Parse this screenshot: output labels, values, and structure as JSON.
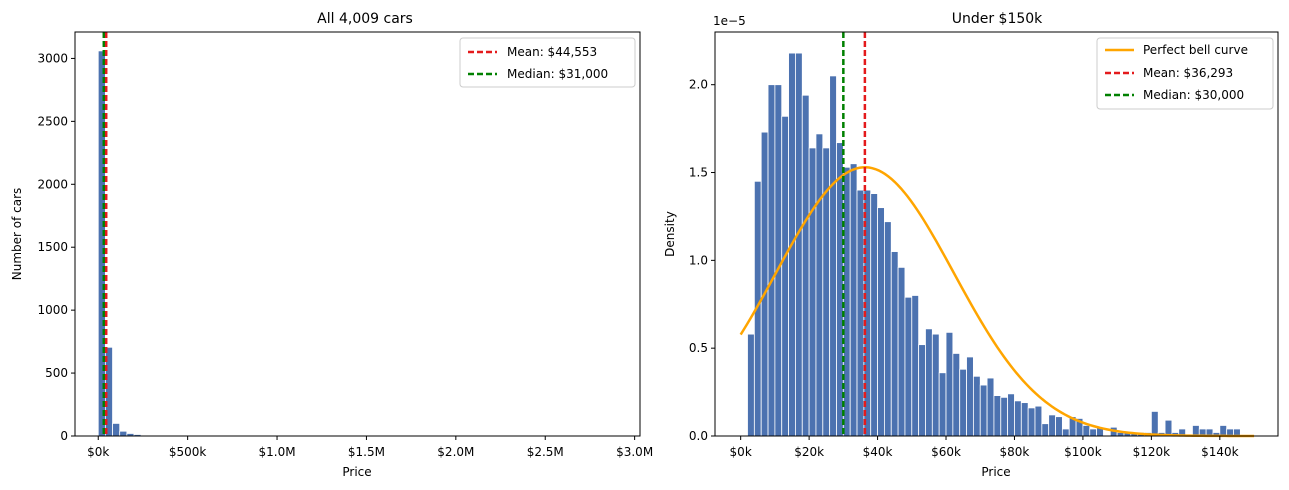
{
  "chart_data": [
    {
      "type": "bar",
      "title": "All 4,009 cars",
      "xlabel": "Price",
      "ylabel": "Number of cars",
      "xlim": [
        -130000,
        3030000
      ],
      "ylim": [
        0,
        3210
      ],
      "xticks": [
        0,
        500000,
        1000000,
        1500000,
        2000000,
        2500000,
        3000000
      ],
      "xticklabels": [
        "$0k",
        "$500k",
        "$1.0M",
        "$1.5M",
        "$2.0M",
        "$2.5M",
        "$3.0M"
      ],
      "yticks": [
        0,
        500,
        1000,
        1500,
        2000,
        2500,
        3000
      ],
      "yticklabels": [
        "0",
        "500",
        "1000",
        "1500",
        "2000",
        "2500",
        "3000"
      ],
      "bin_width": 40000,
      "bins_start": [
        0,
        40000,
        80000,
        120000,
        160000,
        200000,
        240000,
        280000
      ],
      "values": [
        3060,
        705,
        100,
        38,
        20,
        12,
        6,
        4
      ],
      "lines": [
        {
          "name": "Mean: $44,553",
          "x": 44553,
          "color": "#e41a1c",
          "style": "dashed"
        },
        {
          "name": "Median: $31,000",
          "x": 31000,
          "color": "#008000",
          "style": "dashed"
        }
      ],
      "legend": "top-right",
      "grid": false
    },
    {
      "type": "bar",
      "title": "Under $150k",
      "xlabel": "Price",
      "ylabel": "Density",
      "offset_text": "1e−5",
      "xlim": [
        -7500,
        157000
      ],
      "ylim": [
        0,
        2.3
      ],
      "xticks": [
        0,
        20000,
        40000,
        60000,
        80000,
        100000,
        120000,
        140000
      ],
      "xticklabels": [
        "$0k",
        "$20k",
        "$40k",
        "$60k",
        "$80k",
        "$100k",
        "$120k",
        "$140k"
      ],
      "yticks": [
        0,
        0.5,
        1.0,
        1.5,
        2.0
      ],
      "yticklabels": [
        "0.0",
        "0.5",
        "1.0",
        "1.5",
        "2.0"
      ],
      "bin_width": 2000,
      "bins_start": [
        2000,
        4000,
        6000,
        8000,
        10000,
        12000,
        14000,
        16000,
        18000,
        20000,
        22000,
        24000,
        26000,
        28000,
        30000,
        32000,
        34000,
        36000,
        38000,
        40000,
        42000,
        44000,
        46000,
        48000,
        50000,
        52000,
        54000,
        56000,
        58000,
        60000,
        62000,
        64000,
        66000,
        68000,
        70000,
        72000,
        74000,
        76000,
        78000,
        80000,
        82000,
        84000,
        86000,
        88000,
        90000,
        92000,
        94000,
        96000,
        98000,
        100000,
        102000,
        104000,
        106000,
        108000,
        110000,
        112000,
        114000,
        116000,
        118000,
        120000,
        122000,
        124000,
        126000,
        128000,
        130000,
        132000,
        134000,
        136000,
        138000,
        140000,
        142000,
        144000,
        146000,
        148000
      ],
      "values": [
        0.58,
        1.45,
        1.73,
        2.0,
        2.0,
        1.82,
        2.18,
        2.18,
        1.94,
        1.64,
        1.72,
        1.64,
        2.05,
        1.67,
        1.53,
        1.55,
        1.4,
        1.4,
        1.38,
        1.3,
        1.22,
        1.05,
        0.96,
        0.79,
        0.8,
        0.52,
        0.61,
        0.58,
        0.36,
        0.59,
        0.47,
        0.38,
        0.45,
        0.34,
        0.29,
        0.33,
        0.23,
        0.22,
        0.24,
        0.2,
        0.19,
        0.16,
        0.17,
        0.07,
        0.12,
        0.11,
        0.04,
        0.11,
        0.1,
        0.06,
        0.04,
        0.05,
        0.0,
        0.05,
        0.02,
        0.02,
        0.02,
        0.02,
        0.02,
        0.14,
        0.02,
        0.09,
        0.02,
        0.04,
        0.0,
        0.06,
        0.04,
        0.04,
        0.02,
        0.06,
        0.04,
        0.04,
        0.0,
        0.0
      ],
      "curve": {
        "name": "Perfect bell curve",
        "mean": 36293,
        "sd": 26000,
        "peak": 1.53,
        "x_from": 0,
        "x_to": 150000,
        "color": "#ffa500"
      },
      "lines": [
        {
          "name": "Mean: $36,293",
          "x": 36293,
          "color": "#e41a1c",
          "style": "dashed"
        },
        {
          "name": "Median: $30,000",
          "x": 30000,
          "color": "#008000",
          "style": "dashed"
        }
      ],
      "legend": "top-right",
      "grid": false,
      "bar_color": "#4c72b0"
    }
  ]
}
